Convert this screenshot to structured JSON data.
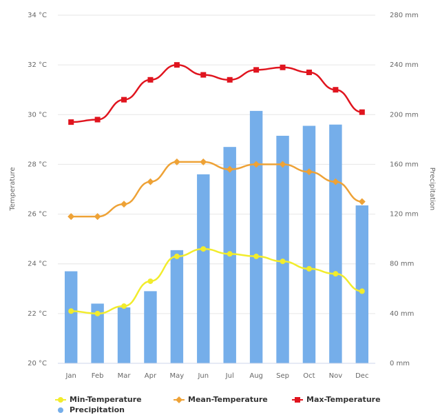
{
  "chart_data": {
    "type": "combo",
    "categories": [
      "Jan",
      "Feb",
      "Mar",
      "Apr",
      "May",
      "Jun",
      "Jul",
      "Aug",
      "Sep",
      "Oct",
      "Nov",
      "Dec"
    ],
    "y_label": "Temperature",
    "y2_label": "Precipitation",
    "ylim": [
      20,
      34
    ],
    "yticks": [
      {
        "value": 20,
        "label": "20 °C"
      },
      {
        "value": 22,
        "label": "22 °C"
      },
      {
        "value": 24,
        "label": "24 °C"
      },
      {
        "value": 26,
        "label": "26 °C"
      },
      {
        "value": 28,
        "label": "28 °C"
      },
      {
        "value": 30,
        "label": "30 °C"
      },
      {
        "value": 32,
        "label": "32 °C"
      },
      {
        "value": 34,
        "label": "34 °C"
      }
    ],
    "y2lim": [
      0,
      280
    ],
    "y2ticks": [
      {
        "value": 0,
        "label": "0 mm"
      },
      {
        "value": 40,
        "label": "40 mm"
      },
      {
        "value": 80,
        "label": "80 mm"
      },
      {
        "value": 120,
        "label": "120 mm"
      },
      {
        "value": 160,
        "label": "160 mm"
      },
      {
        "value": 200,
        "label": "200 mm"
      },
      {
        "value": 240,
        "label": "240 mm"
      },
      {
        "value": 280,
        "label": "280 mm"
      }
    ],
    "grid": true,
    "series": [
      {
        "name": "Min-Temperature",
        "type": "line",
        "marker": "circle",
        "color": "#f2ec2c",
        "values": [
          22.1,
          22.0,
          22.3,
          23.3,
          24.3,
          24.6,
          24.4,
          24.3,
          24.1,
          23.8,
          23.6,
          22.9
        ]
      },
      {
        "name": "Mean-Temperature",
        "type": "line",
        "marker": "diamond",
        "color": "#eea236",
        "values": [
          25.9,
          25.9,
          26.4,
          27.3,
          28.1,
          28.1,
          27.8,
          28.0,
          28.0,
          27.7,
          27.3,
          26.5
        ]
      },
      {
        "name": "Max-Temperature",
        "type": "line",
        "marker": "square",
        "color": "#e0141e",
        "values": [
          29.7,
          29.8,
          30.6,
          31.4,
          32.0,
          31.6,
          31.4,
          31.8,
          31.9,
          31.7,
          31.0,
          30.1
        ]
      },
      {
        "name": "Precipitation",
        "type": "column",
        "axis": "y2",
        "marker": "circle",
        "color": "#75aeea",
        "values": [
          74,
          48,
          45,
          58,
          91,
          152,
          174,
          203,
          183,
          191,
          192,
          127
        ]
      }
    ]
  }
}
